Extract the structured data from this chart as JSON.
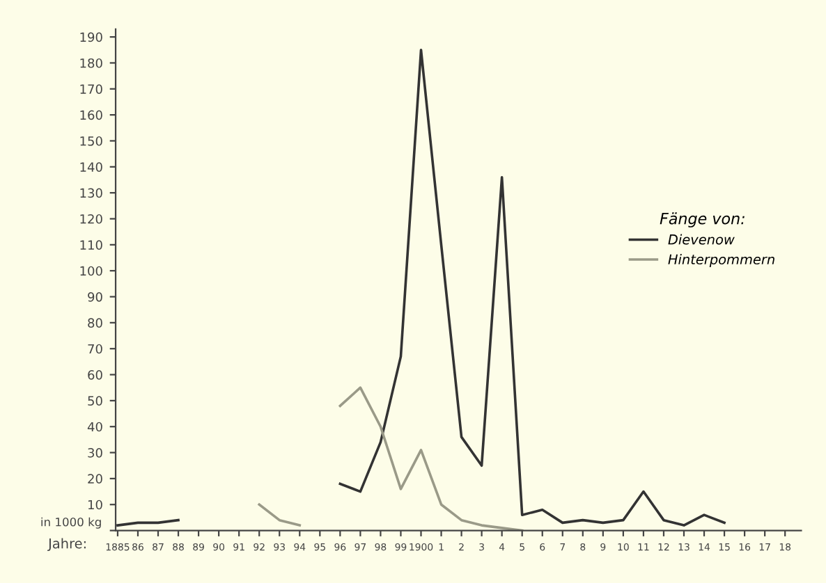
{
  "chart_data": {
    "type": "line",
    "xlabel": "Jahre:",
    "ylabel": "in 1000 kg",
    "legend_title": "Fänge von:",
    "legend": "right",
    "categories": [
      "1885",
      "86",
      "87",
      "88",
      "89",
      "90",
      "91",
      "92",
      "93",
      "94",
      "95",
      "96",
      "97",
      "98",
      "99",
      "1900",
      "1",
      "2",
      "3",
      "4",
      "5",
      "6",
      "7",
      "8",
      "9",
      "10",
      "11",
      "12",
      "13",
      "14",
      "15",
      "16",
      "17",
      "18"
    ],
    "ylim": [
      0,
      193
    ],
    "yticks": [
      {
        "value": 0,
        "label": null
      },
      10,
      20,
      30,
      40,
      50,
      60,
      70,
      80,
      90,
      100,
      110,
      120,
      130,
      140,
      150,
      160,
      170,
      180,
      190
    ],
    "grid": false,
    "marker": "none",
    "line_style": "solid",
    "series": [
      {
        "name": "Dievenow",
        "color": "#333333",
        "values": [
          2,
          3,
          3,
          4,
          null,
          null,
          null,
          null,
          null,
          null,
          null,
          18,
          15,
          34,
          67,
          185,
          110,
          36,
          25,
          136,
          6,
          8,
          3,
          4,
          3,
          4,
          15,
          4,
          2,
          6,
          3,
          null,
          null,
          null
        ]
      },
      {
        "name": "Hinterpommern",
        "color": "#9a9a88",
        "values": [
          null,
          null,
          null,
          null,
          null,
          null,
          null,
          10,
          4,
          2,
          null,
          48,
          55,
          40,
          16,
          31,
          10,
          4,
          2,
          1,
          0,
          null,
          null,
          null,
          null,
          null,
          null,
          null,
          null,
          null,
          null,
          null,
          null,
          null
        ]
      }
    ]
  }
}
